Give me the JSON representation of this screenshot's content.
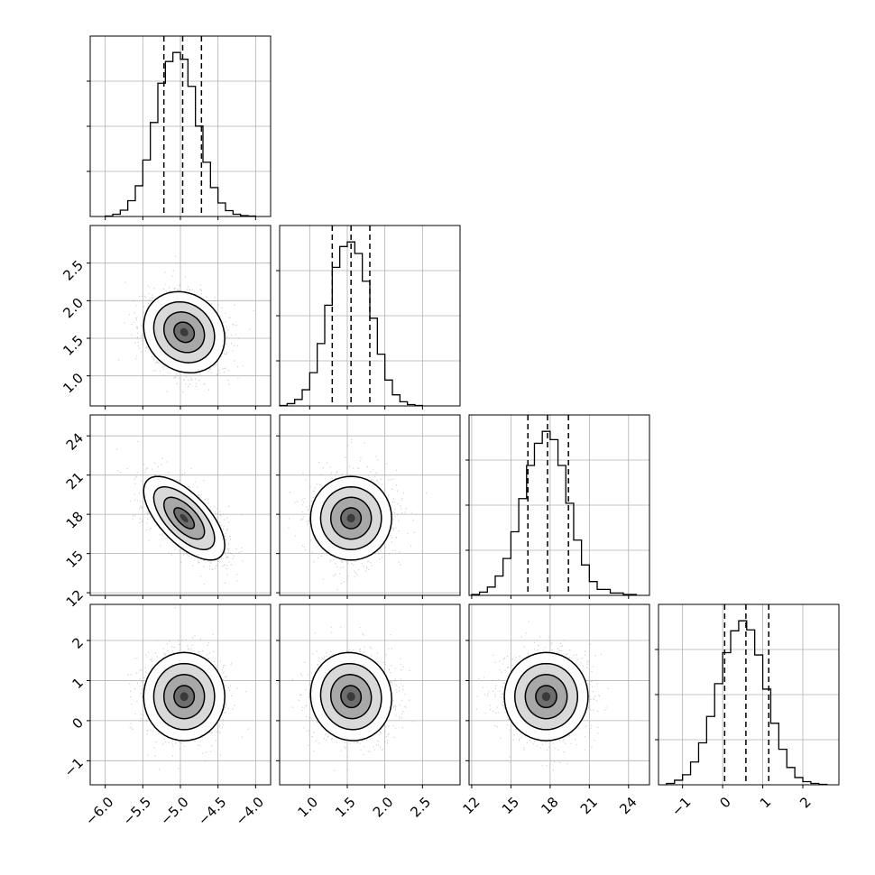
{
  "chart_data": {
    "type": "corner",
    "grid": true,
    "axes": [
      {
        "range": [
          -6.2,
          -3.8
        ],
        "ticks": [
          -6.0,
          -5.5,
          -5.0,
          -4.5,
          -4.0
        ],
        "tick_labels": [
          "−6.0",
          "−5.5",
          "−5.0",
          "−4.5",
          "−4.0"
        ]
      },
      {
        "range": [
          0.6,
          3.0
        ],
        "ticks": [
          1.0,
          1.5,
          2.0,
          2.5
        ],
        "tick_labels": [
          "1.0",
          "1.5",
          "2.0",
          "2.5"
        ]
      },
      {
        "range": [
          11.8,
          25.6
        ],
        "ticks": [
          12,
          15,
          18,
          21,
          24
        ],
        "tick_labels": [
          "12",
          "15",
          "18",
          "21",
          "24"
        ]
      },
      {
        "range": [
          -1.6,
          2.9
        ],
        "ticks": [
          -1,
          0,
          1,
          2
        ],
        "tick_labels": [
          "−1",
          "0",
          "1",
          "2"
        ]
      }
    ],
    "marginals": [
      {
        "param": 0,
        "edges": [
          -6.0,
          -5.9,
          -5.8,
          -5.7,
          -5.6,
          -5.5,
          -5.4,
          -5.3,
          -5.2,
          -5.1,
          -5.0,
          -4.9,
          -4.8,
          -4.7,
          -4.6,
          -4.5,
          -4.4,
          -4.3,
          -4.2,
          -4.1,
          -4.0
        ],
        "counts": [
          1,
          5,
          14,
          35,
          68,
          125,
          208,
          295,
          343,
          363,
          348,
          288,
          200,
          120,
          64,
          30,
          13,
          5,
          2,
          1
        ],
        "quantiles": [
          -5.22,
          -4.97,
          -4.72
        ]
      },
      {
        "param": 1,
        "edges": [
          0.6,
          0.7,
          0.8,
          0.9,
          1.0,
          1.1,
          1.2,
          1.3,
          1.4,
          1.5,
          1.6,
          1.7,
          1.8,
          1.9,
          2.0,
          2.1,
          2.2,
          2.3,
          2.4,
          2.5
        ],
        "counts": [
          1,
          5,
          14,
          35,
          72,
          135,
          218,
          300,
          345,
          355,
          330,
          270,
          190,
          112,
          56,
          24,
          9,
          3,
          1
        ],
        "quantiles": [
          1.3,
          1.55,
          1.8
        ]
      },
      {
        "param": 2,
        "edges": [
          12.0,
          12.6,
          13.2,
          13.8,
          14.4,
          15.0,
          15.6,
          16.2,
          16.8,
          17.4,
          18.0,
          18.6,
          19.2,
          19.8,
          20.4,
          21.0,
          21.6,
          22.6,
          23.6,
          24.6
        ],
        "counts": [
          2,
          7,
          18,
          42,
          80,
          138,
          210,
          282,
          330,
          356,
          338,
          282,
          200,
          120,
          66,
          30,
          13,
          5,
          2
        ],
        "quantiles": [
          16.3,
          17.8,
          19.4
        ]
      },
      {
        "param": 3,
        "edges": [
          -1.4,
          -1.2,
          -1.0,
          -0.8,
          -0.6,
          -0.4,
          -0.2,
          0.0,
          0.2,
          0.4,
          0.6,
          0.8,
          1.0,
          1.2,
          1.4,
          1.6,
          1.8,
          2.0,
          2.2,
          2.4,
          2.6
        ],
        "counts": [
          3,
          10,
          22,
          50,
          92,
          150,
          222,
          290,
          338,
          360,
          340,
          285,
          210,
          135,
          78,
          38,
          16,
          7,
          3,
          1
        ],
        "quantiles": [
          0.05,
          0.58,
          1.15
        ]
      }
    ],
    "pairs": [
      {
        "x_param": 0,
        "y_param": 1,
        "x_mean": -4.95,
        "y_mean": 1.58,
        "x_sd": 0.27,
        "y_sd": 0.27,
        "rho": -0.15
      },
      {
        "x_param": 0,
        "y_param": 2,
        "x_mean": -4.95,
        "y_mean": 17.7,
        "x_sd": 0.27,
        "y_sd": 1.6,
        "rho": -0.65
      },
      {
        "x_param": 1,
        "y_param": 2,
        "x_mean": 1.55,
        "y_mean": 17.7,
        "x_sd": 0.27,
        "y_sd": 1.6,
        "rho": 0.0
      },
      {
        "x_param": 0,
        "y_param": 3,
        "x_mean": -4.95,
        "y_mean": 0.6,
        "x_sd": 0.27,
        "y_sd": 0.55,
        "rho": 0.0
      },
      {
        "x_param": 1,
        "y_param": 3,
        "x_mean": 1.55,
        "y_mean": 0.6,
        "x_sd": 0.27,
        "y_sd": 0.55,
        "rho": -0.05
      },
      {
        "x_param": 2,
        "y_param": 3,
        "x_mean": 17.7,
        "y_mean": 0.6,
        "x_sd": 1.6,
        "y_sd": 0.55,
        "rho": 0.0
      }
    ],
    "contour_levels_sigma": [
      0.5,
      1.0,
      1.5,
      2.0
    ]
  }
}
